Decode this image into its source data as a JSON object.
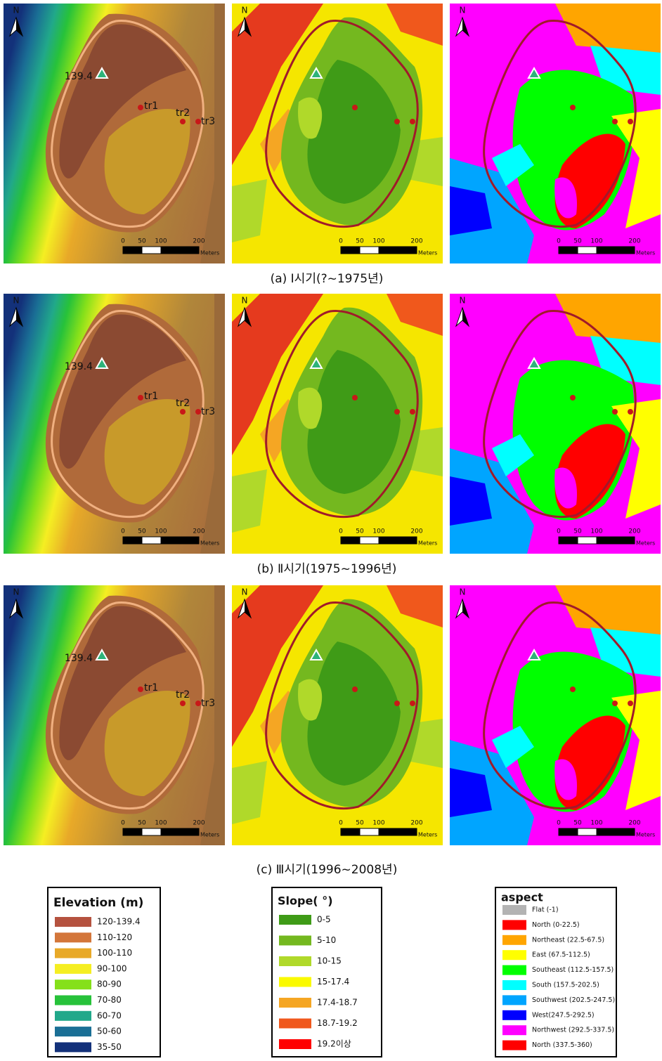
{
  "rows": [
    {
      "caption": "(a) Ⅰ시기(?~1975년)",
      "elevation": {
        "north": "N",
        "peak": "139.4",
        "points": [
          "tr1",
          "tr2",
          "tr3"
        ],
        "scale": [
          "0",
          "50",
          "100",
          "200"
        ],
        "unit": "Meters"
      },
      "slope": {
        "north": "N",
        "scale": [
          "0",
          "50",
          "100",
          "200"
        ],
        "unit": "Meters"
      },
      "aspect": {
        "north": "N",
        "scale": [
          "0",
          "50",
          "100",
          "200"
        ],
        "unit": "Meters"
      }
    },
    {
      "caption": "(b) Ⅱ시기(1975~1996년)",
      "elevation": {
        "north": "N",
        "peak": "139.4",
        "points": [
          "tr1",
          "tr2",
          "tr3"
        ],
        "scale": [
          "0",
          "50",
          "100",
          "200"
        ],
        "unit": "Meters"
      },
      "slope": {
        "north": "N",
        "scale": [
          "0",
          "50",
          "100",
          "200"
        ],
        "unit": "Meters"
      },
      "aspect": {
        "north": "N",
        "scale": [
          "0",
          "50",
          "100",
          "200"
        ],
        "unit": "Meters"
      }
    },
    {
      "caption": "(c) Ⅲ시기(1996~2008년)",
      "elevation": {
        "north": "N",
        "peak": "139.4",
        "points": [
          "tr1",
          "tr2",
          "tr3"
        ],
        "scale": [
          "0",
          "50",
          "100",
          "200"
        ],
        "unit": "Meters"
      },
      "slope": {
        "north": "N",
        "scale": [
          "0",
          "50",
          "100",
          "200"
        ],
        "unit": "Meters"
      },
      "aspect": {
        "north": "N",
        "scale": [
          "0",
          "50",
          "100",
          "200"
        ],
        "unit": "Meters"
      }
    }
  ],
  "legends": [
    {
      "title": "Elevation (m)",
      "items": [
        {
          "label": "120-139.4",
          "color": "#b5523f"
        },
        {
          "label": "110-120",
          "color": "#d3763a"
        },
        {
          "label": "100-110",
          "color": "#e8a928"
        },
        {
          "label": "90-100",
          "color": "#f5ee22"
        },
        {
          "label": "80-90",
          "color": "#85e01a"
        },
        {
          "label": "70-80",
          "color": "#27c23a"
        },
        {
          "label": "60-70",
          "color": "#21a88a"
        },
        {
          "label": "50-60",
          "color": "#1a6f95"
        },
        {
          "label": "35-50",
          "color": "#13317a"
        }
      ]
    },
    {
      "title": "Slope( °)",
      "items": [
        {
          "label": "0-5",
          "color": "#3f9b17"
        },
        {
          "label": "5-10",
          "color": "#74b81f"
        },
        {
          "label": "10-15",
          "color": "#b0d92a"
        },
        {
          "label": "15-17.4",
          "color": "#fafa00"
        },
        {
          "label": "17.4-18.7",
          "color": "#f5a623"
        },
        {
          "label": "18.7-19.2",
          "color": "#f0581c"
        },
        {
          "label": "19.2이상",
          "color": "#ff0000"
        }
      ]
    },
    {
      "title": "aspect",
      "items": [
        {
          "label": "Flat (-1)",
          "color": "#b3b3b3"
        },
        {
          "label": "North (0-22.5)",
          "color": "#ff0000"
        },
        {
          "label": "Northeast (22.5-67.5)",
          "color": "#ffa500"
        },
        {
          "label": "East (67.5-112.5)",
          "color": "#ffff00"
        },
        {
          "label": "Southeast (112.5-157.5)",
          "color": "#00ff00"
        },
        {
          "label": "South (157.5-202.5)",
          "color": "#00ffff"
        },
        {
          "label": "Southwest (202.5-247.5)",
          "color": "#00a5ff"
        },
        {
          "label": "West(247.5-292.5)",
          "color": "#0000ff"
        },
        {
          "label": "Northwest (292.5-337.5)",
          "color": "#ff00ff"
        },
        {
          "label": "North (337.5-360)",
          "color": "#ff0000"
        }
      ]
    }
  ]
}
